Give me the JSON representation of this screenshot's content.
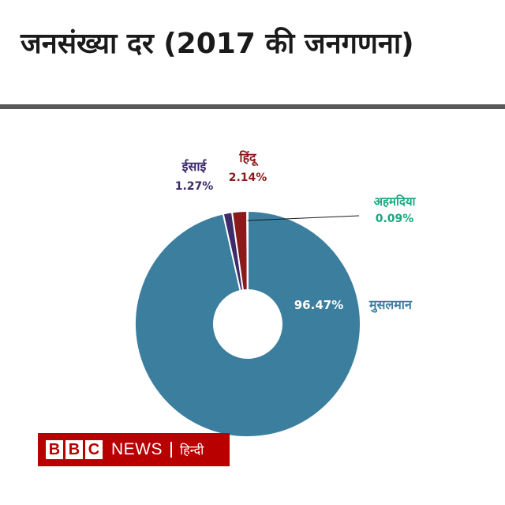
{
  "title": "जनसंख्या दर (2017 की जनगणना)",
  "logo": {
    "letters": [
      "B",
      "B",
      "C"
    ],
    "news": "NEWS",
    "language": "हिन्दी"
  },
  "chart_data": {
    "type": "pie",
    "donut": true,
    "title": "जनसंख्या दर (2017 की जनगणना)",
    "slices": [
      {
        "name": "मुसलमान",
        "value": 96.47,
        "label": "96.47%",
        "color": "#3c7e9e"
      },
      {
        "name": "ईसाई",
        "value": 1.27,
        "label": "1.27%",
        "color": "#3d2b6b"
      },
      {
        "name": "हिंदू",
        "value": 2.14,
        "label": "2.14%",
        "color": "#8b1a1a"
      },
      {
        "name": "अहमदिया",
        "value": 0.09,
        "label": "0.09%",
        "color": "#19a880"
      }
    ]
  }
}
